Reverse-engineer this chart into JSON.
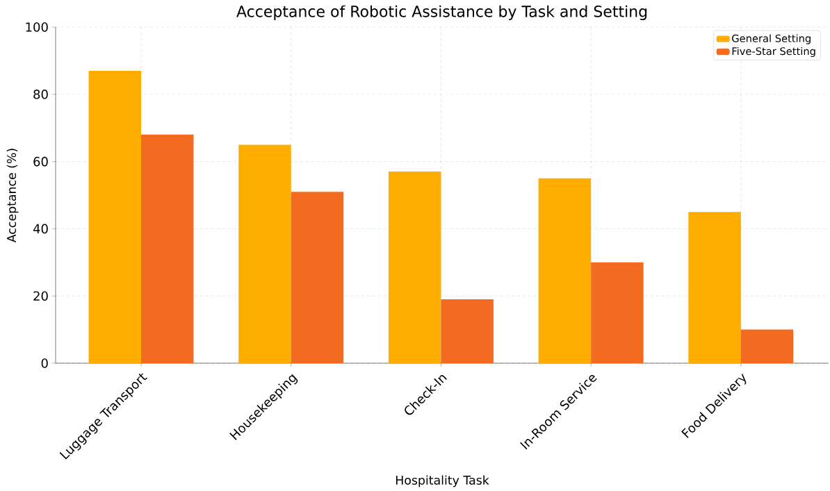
{
  "chart_data": {
    "type": "bar",
    "title": "Acceptance of Robotic Assistance by Task and Setting",
    "xlabel": "Hospitality Task",
    "ylabel": "Acceptance (%)",
    "categories": [
      "Luggage Transport",
      "Housekeeping",
      "Check-In",
      "In-Room Service",
      "Food Delivery"
    ],
    "series": [
      {
        "name": "General Setting",
        "color": "#ffad00",
        "values": [
          87,
          65,
          57,
          55,
          45
        ]
      },
      {
        "name": "Five-Star Setting",
        "color": "#f26b21",
        "values": [
          68,
          51,
          19,
          30,
          10
        ]
      }
    ],
    "ylim": [
      0,
      100
    ],
    "yticks": [
      0,
      20,
      40,
      60,
      80,
      100
    ],
    "grid": true,
    "legend": "top right"
  }
}
